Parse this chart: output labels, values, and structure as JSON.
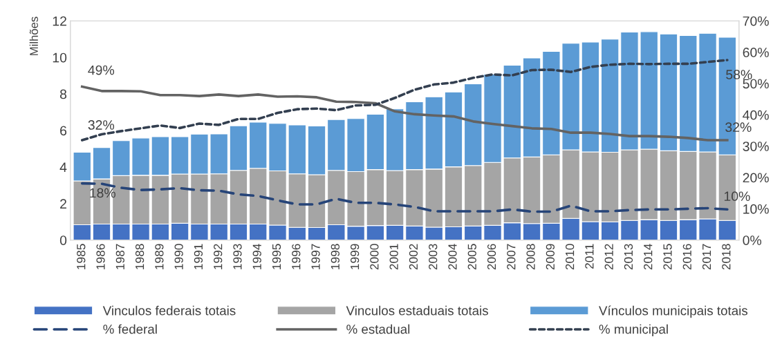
{
  "chart_data": {
    "type": "bar",
    "stacked": true,
    "categories": [
      "1985",
      "1986",
      "1987",
      "1988",
      "1989",
      "1990",
      "1991",
      "1992",
      "1993",
      "1994",
      "1995",
      "1996",
      "1997",
      "1998",
      "1999",
      "2000",
      "2001",
      "2002",
      "2003",
      "2004",
      "2005",
      "2006",
      "2007",
      "2008",
      "2009",
      "2010",
      "2011",
      "2012",
      "2013",
      "2014",
      "2015",
      "2016",
      "2017",
      "2018"
    ],
    "ylabel": "Milhões",
    "ylim": [
      0,
      12
    ],
    "yticks": [
      0,
      2,
      4,
      6,
      8,
      10,
      12
    ],
    "y2lim": [
      0,
      70
    ],
    "y2ticks": [
      {
        "value": 0,
        "label": "0%"
      },
      {
        "value": 10,
        "label": "10%"
      },
      {
        "value": 20,
        "label": "20%"
      },
      {
        "value": 30,
        "label": "30%"
      },
      {
        "value": 40,
        "label": "40%"
      },
      {
        "value": 50,
        "label": "50%"
      },
      {
        "value": 60,
        "label": "60%"
      },
      {
        "value": 70,
        "label": "70%"
      }
    ],
    "series": [
      {
        "name": "Vinculos federais totais",
        "color": "#4472c4",
        "values": [
          0.84,
          0.88,
          0.88,
          0.88,
          0.88,
          0.92,
          0.88,
          0.88,
          0.88,
          0.88,
          0.82,
          0.7,
          0.69,
          0.84,
          0.76,
          0.8,
          0.81,
          0.77,
          0.71,
          0.73,
          0.77,
          0.81,
          0.95,
          0.91,
          0.92,
          1.19,
          1.01,
          1.0,
          1.08,
          1.12,
          1.08,
          1.12,
          1.16,
          1.08
        ]
      },
      {
        "name": "Vinculos estaduais totais",
        "color": "#a5a5a5",
        "values": [
          2.4,
          2.47,
          2.65,
          2.67,
          2.67,
          2.7,
          2.74,
          2.75,
          2.94,
          3.05,
          2.97,
          2.93,
          2.89,
          2.98,
          2.99,
          3.06,
          3.0,
          3.09,
          3.18,
          3.28,
          3.31,
          3.44,
          3.55,
          3.64,
          3.75,
          3.75,
          3.82,
          3.81,
          3.86,
          3.86,
          3.81,
          3.73,
          3.67,
          3.59
        ]
      },
      {
        "name": "Vínculos municipais totais",
        "color": "#5b9bd5",
        "values": [
          1.57,
          1.72,
          1.91,
          2.04,
          2.11,
          2.04,
          2.18,
          2.18,
          2.44,
          2.53,
          2.6,
          2.67,
          2.67,
          2.78,
          2.9,
          3.03,
          3.37,
          3.71,
          3.95,
          4.1,
          4.47,
          4.83,
          5.07,
          5.42,
          5.66,
          5.83,
          6.01,
          6.19,
          6.45,
          6.43,
          6.39,
          6.35,
          6.49,
          6.43
        ]
      },
      {
        "name": "% federal",
        "type": "line",
        "axis": "y2",
        "line_style": "dashed",
        "color": "#264478",
        "values": [
          18.1,
          18.0,
          16.7,
          16.0,
          16.2,
          16.6,
          15.9,
          15.8,
          14.6,
          14.1,
          12.7,
          11.4,
          11.4,
          13.2,
          11.9,
          11.9,
          11.4,
          10.6,
          9.2,
          9.2,
          9.2,
          9.2,
          9.8,
          9.1,
          9.1,
          11.0,
          9.2,
          9.2,
          9.6,
          9.8,
          9.8,
          10.0,
          10.2,
          9.8
        ]
      },
      {
        "name": "% estadual",
        "type": "line",
        "axis": "y2",
        "line_style": "solid",
        "color": "#636363",
        "values": [
          49.0,
          47.6,
          47.6,
          47.5,
          46.3,
          46.3,
          46.0,
          46.5,
          46.0,
          46.5,
          45.8,
          45.9,
          45.6,
          44.2,
          44.1,
          43.7,
          41.1,
          40.2,
          39.8,
          39.5,
          37.9,
          37.1,
          36.4,
          35.7,
          35.5,
          34.3,
          34.3,
          33.9,
          33.2,
          33.2,
          33.0,
          32.6,
          31.9,
          31.9
        ]
      },
      {
        "name": "% municipal",
        "type": "line",
        "axis": "y2",
        "line_style": "dotted",
        "color": "#333f50",
        "values": [
          31.9,
          33.8,
          34.8,
          35.7,
          36.6,
          35.8,
          37.2,
          36.8,
          38.7,
          38.7,
          40.6,
          41.8,
          42.0,
          41.5,
          43.0,
          43.2,
          45.4,
          48.0,
          49.7,
          50.3,
          51.8,
          52.9,
          52.6,
          54.3,
          54.4,
          53.7,
          55.3,
          56.0,
          56.3,
          56.2,
          56.3,
          56.3,
          56.9,
          57.5
        ]
      }
    ],
    "annotations": [
      "49%",
      "32%",
      "18%",
      "58%",
      "32%",
      "10%"
    ],
    "legend": "bottom",
    "grid": false
  }
}
